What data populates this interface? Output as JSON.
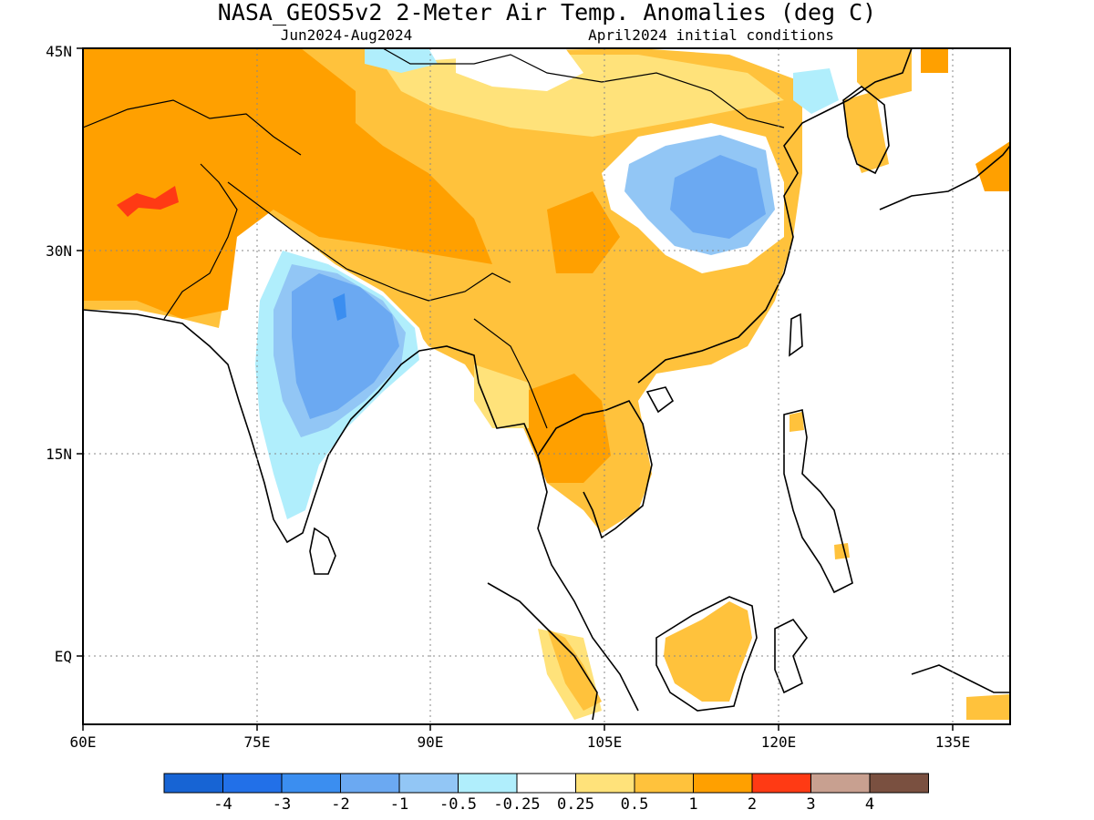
{
  "title": "NASA_GEOS5v2 2-Meter Air Temp. Anomalies (deg C)",
  "subtitle_left": "Jun2024-Aug2024",
  "subtitle_right": "April2024 initial conditions",
  "chart_data": {
    "type": "heatmap",
    "lon_range": [
      60,
      140
    ],
    "lat_range": [
      -5,
      45
    ],
    "x_ticks": [
      "60E",
      "75E",
      "90E",
      "105E",
      "120E",
      "135E"
    ],
    "y_ticks": [
      "EQ",
      "15N",
      "30N",
      "45N"
    ],
    "grid": "dotted",
    "colorbar": {
      "levels": [
        "-4",
        "-3",
        "-2",
        "-1",
        "-0.5",
        "-0.25",
        "0.25",
        "0.5",
        "1",
        "2",
        "3",
        "4"
      ],
      "colors": [
        "#1764d4",
        "#2270e8",
        "#3b8ef0",
        "#6ba9f2",
        "#92c6f5",
        "#b0eefc",
        "#ffffff",
        "#ffe27a",
        "#ffc23c",
        "#ffa000",
        "#ff3a14",
        "#c8a090",
        "#7a5040"
      ]
    }
  }
}
